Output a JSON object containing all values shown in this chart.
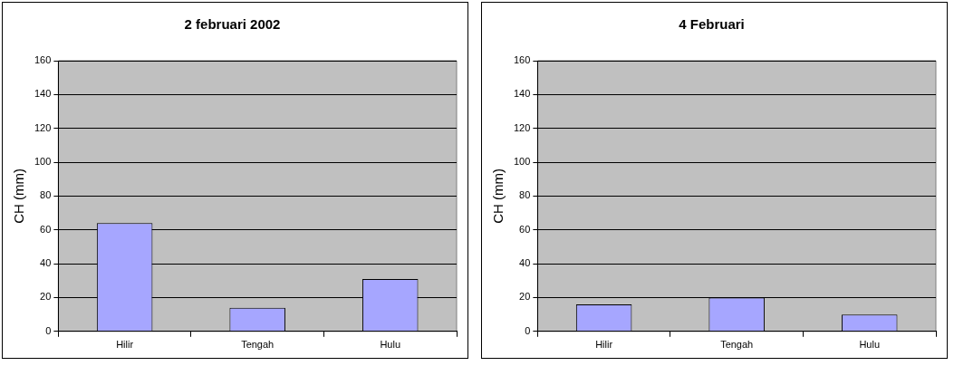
{
  "chart_data": [
    {
      "type": "bar",
      "title": "2 februari 2002",
      "ylabel": "CH (mm)",
      "categories": [
        "Hilir",
        "Tengah",
        "Hulu"
      ],
      "values": [
        64,
        14,
        31
      ],
      "color": "#a6a6ff",
      "ylim": [
        0,
        160
      ],
      "yticks": [
        0,
        20,
        40,
        60,
        80,
        100,
        120,
        140,
        160
      ],
      "grid": "y",
      "legend": false
    },
    {
      "type": "bar",
      "title": "4 Februari",
      "ylabel": "CH (mm)",
      "categories": [
        "Hilir",
        "Tengah",
        "Hulu"
      ],
      "values": [
        16,
        20,
        10
      ],
      "color": "#a6a6ff",
      "ylim": [
        0,
        160
      ],
      "yticks": [
        0,
        20,
        40,
        60,
        80,
        100,
        120,
        140,
        160
      ],
      "grid": "y",
      "legend": false
    }
  ]
}
